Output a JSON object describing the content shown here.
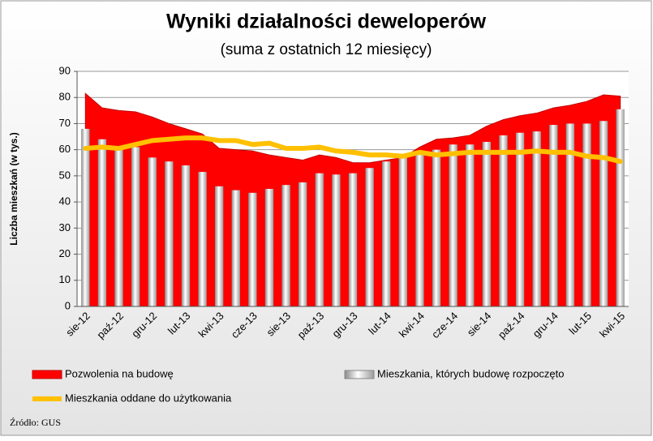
{
  "chart_data": {
    "type": "combo",
    "title": "Wyniki działalności deweloperów",
    "subtitle": "(suma z ostatnich 12 miesięcy)",
    "y_label": "Liczba mieszkań (w tys.)",
    "source": "Źródło: GUS",
    "categories": [
      "sie-12",
      null,
      "paź-12",
      null,
      "gru-12",
      null,
      "lut-13",
      null,
      "kwi-13",
      null,
      "cze-13",
      null,
      "sie-13",
      null,
      "paź-13",
      null,
      "gru-13",
      null,
      "lut-14",
      null,
      "kwi-14",
      null,
      "cze-14",
      null,
      "sie-14",
      null,
      "paź-14",
      null,
      "gru-14",
      null,
      "lut-15",
      null,
      "kwi-15"
    ],
    "series": [
      {
        "name": "Pozwolenia na budowę",
        "type": "area",
        "color": "#ff0000",
        "values": [
          81.5,
          76,
          75,
          74.5,
          72.5,
          70,
          68,
          66,
          60.5,
          60,
          59.5,
          58,
          57,
          56,
          58,
          57,
          55,
          55,
          56,
          57,
          61,
          64,
          64.5,
          65.5,
          69,
          71.5,
          73,
          74,
          76,
          77,
          78.5,
          81,
          80.5
        ]
      },
      {
        "name": "Mieszkania, których budowę rozpoczęto",
        "type": "bar",
        "color": "#c0c0c0",
        "values": [
          68,
          64,
          60,
          61,
          57,
          55.5,
          54,
          51.5,
          46,
          44.5,
          43.5,
          45,
          46.5,
          47.5,
          51,
          50.5,
          51,
          53,
          55.5,
          57,
          58.5,
          60,
          62,
          62,
          63,
          65.5,
          66.5,
          67,
          69.5,
          70,
          70,
          71,
          75.5
        ]
      },
      {
        "name": "Mieszkania oddane do użytkowania",
        "type": "line",
        "color": "#ffc000",
        "values": [
          60.5,
          61,
          60.5,
          62,
          63.5,
          64,
          64.5,
          64.5,
          63.5,
          63.5,
          62,
          62.5,
          60.5,
          60.5,
          61,
          59.5,
          59,
          58,
          58,
          57.5,
          59,
          58,
          58.5,
          59,
          59,
          59,
          59,
          59.5,
          59,
          59,
          57.5,
          57,
          55.5
        ]
      }
    ],
    "ylim": [
      0,
      90
    ],
    "yticks": [
      0,
      10,
      20,
      30,
      40,
      50,
      60,
      70,
      80,
      90
    ],
    "grid": true
  }
}
